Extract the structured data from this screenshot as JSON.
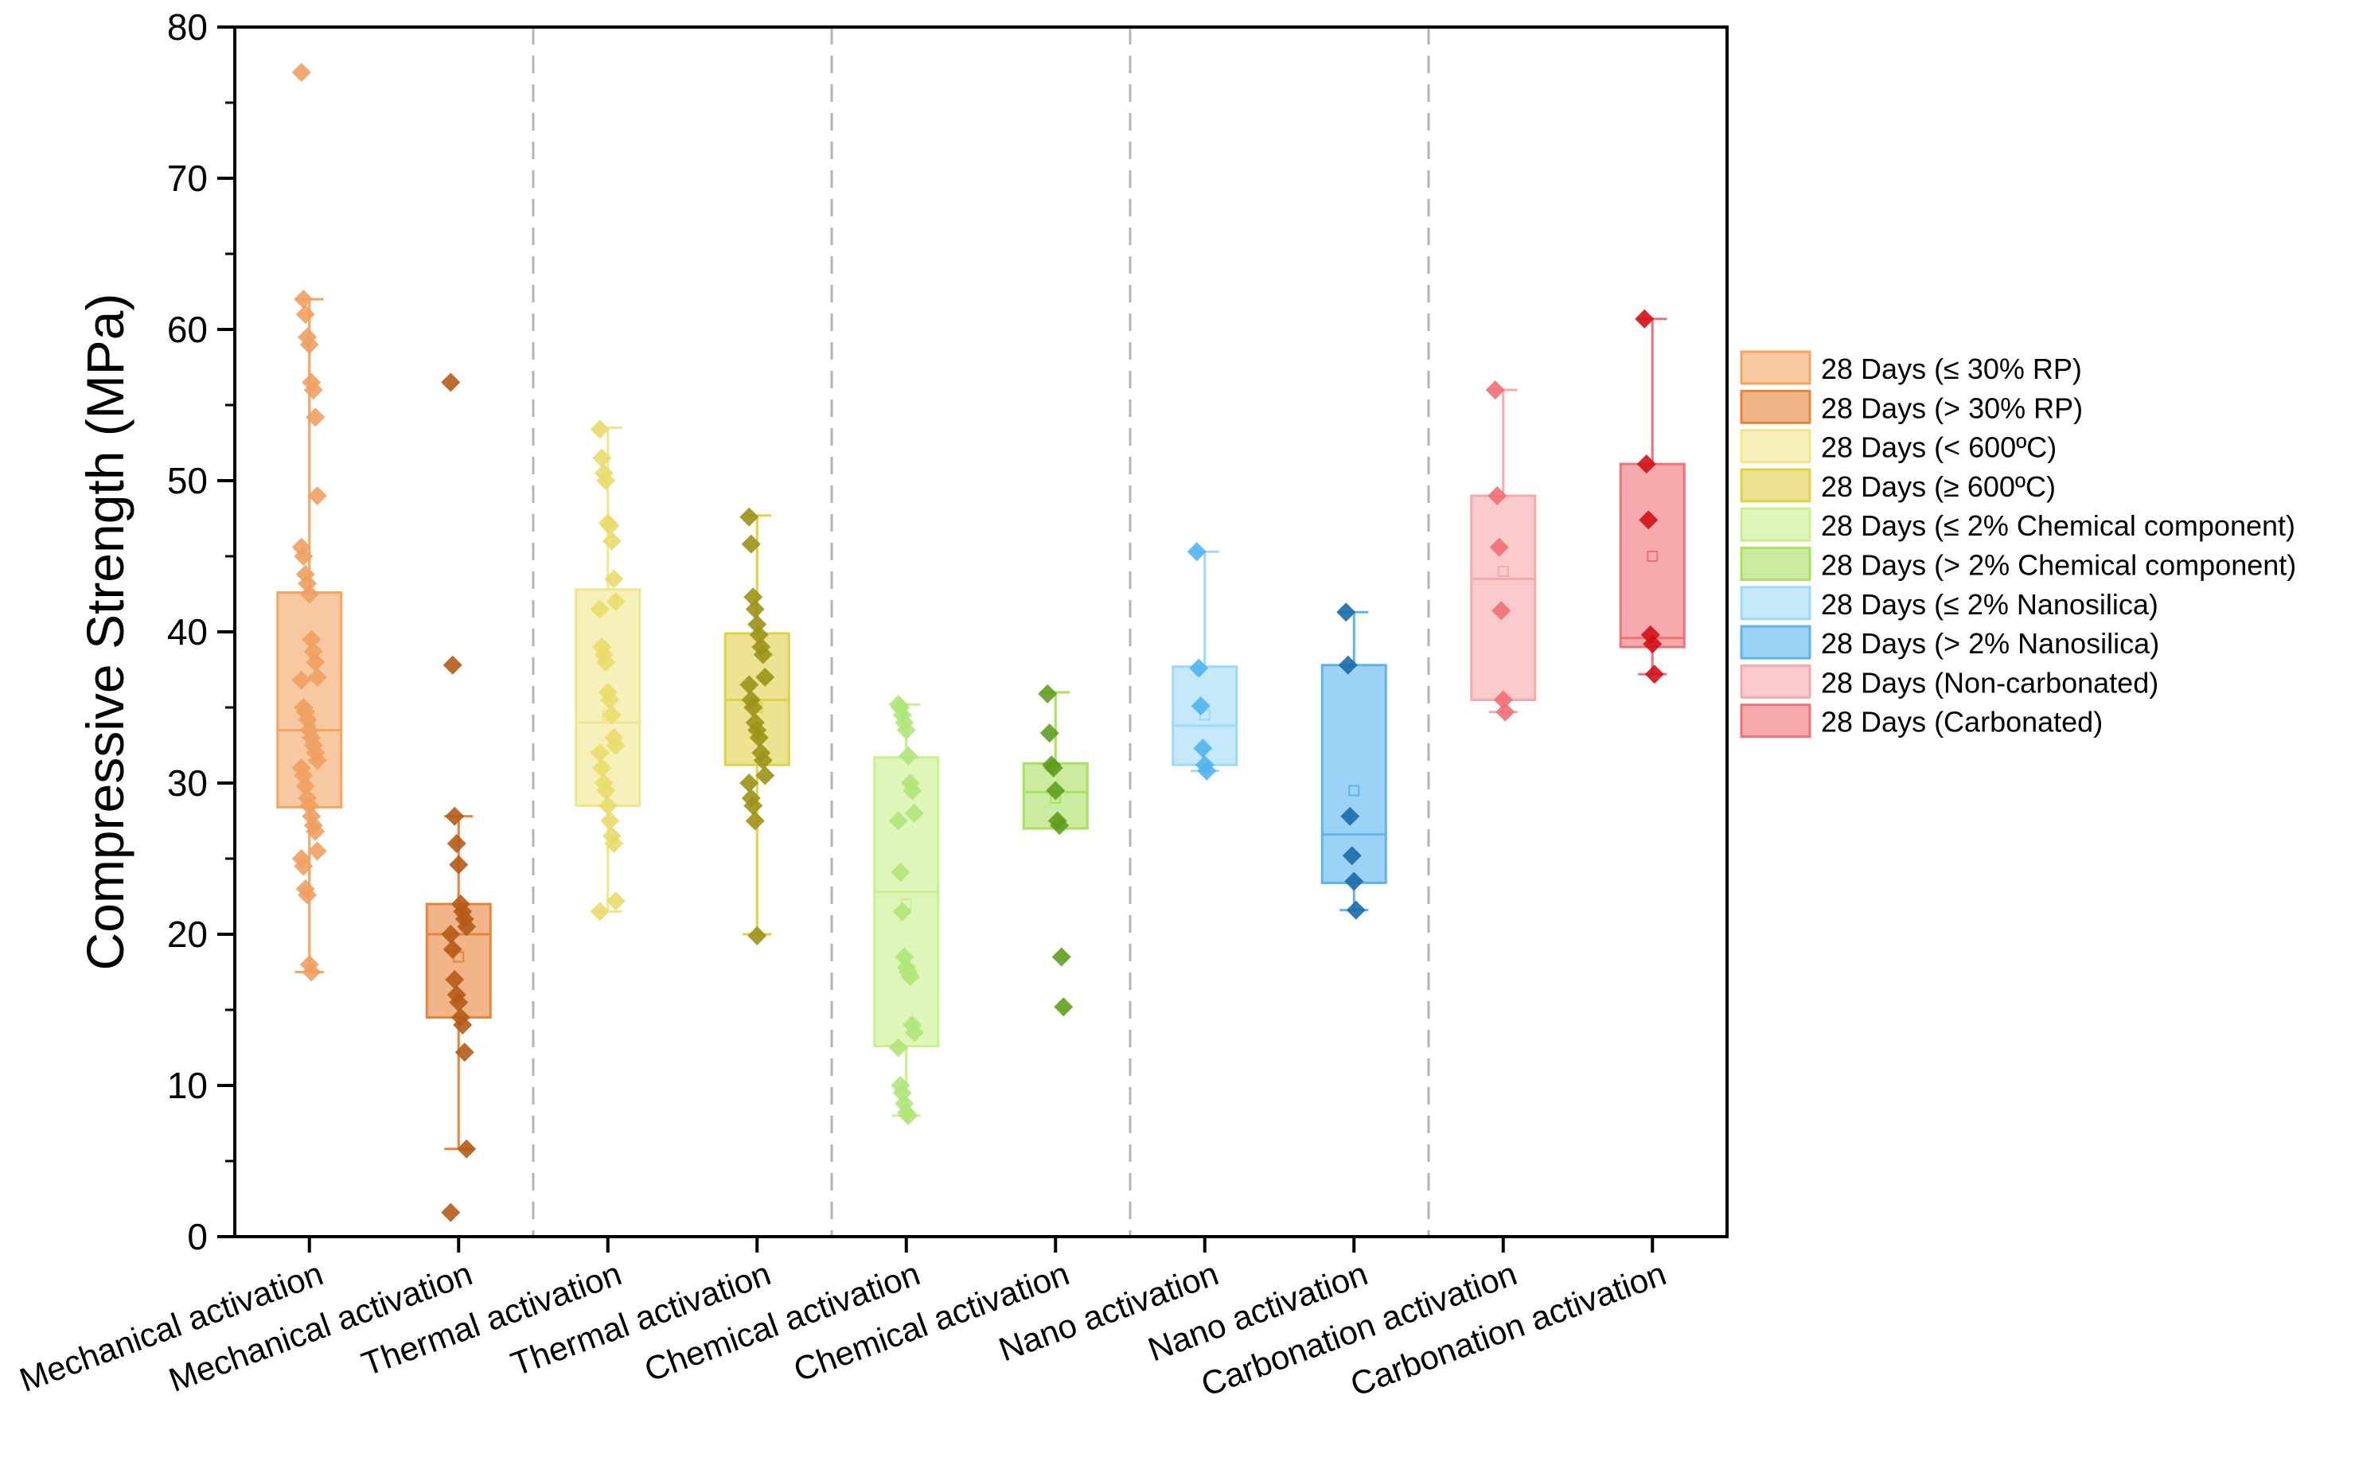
{
  "chart_data": {
    "type": "box",
    "ylabel": "Compressive Strength (MPa)",
    "xlabel": "",
    "ylim": [
      0,
      80
    ],
    "yticks": [
      0,
      10,
      20,
      30,
      40,
      50,
      60,
      70,
      80
    ],
    "group_separators_after": [
      2,
      4,
      6,
      8
    ],
    "legend_position": "right",
    "boxes": [
      {
        "category": "Mechanical activation",
        "legend": "28 Days (≤ 30% RP)",
        "color": "#f4a460",
        "marker": "#f0a060",
        "q1": 28.4,
        "median": 33.5,
        "q3": 42.6,
        "whisker_low": 17.5,
        "whisker_high": 62.0,
        "mean": 34.0,
        "points": [
          77.0,
          62.0,
          61.0,
          59.5,
          59.0,
          56.5,
          56.0,
          54.2,
          49.0,
          45.6,
          45.0,
          43.8,
          43.2,
          42.5,
          39.5,
          38.7,
          38.0,
          37.0,
          36.8,
          35.0,
          34.7,
          34.2,
          33.5,
          33.0,
          32.5,
          32.0,
          31.5,
          31.0,
          30.5,
          29.8,
          29.0,
          28.5,
          27.8,
          27.2,
          26.8,
          25.5,
          25.0,
          24.5,
          23.0,
          22.6,
          18.0,
          17.5
        ]
      },
      {
        "category": "Mechanical activation",
        "legend": "28 Days (> 30% RP)",
        "color": "#e8833a",
        "marker": "#b55a16",
        "q1": 14.5,
        "median": 20.0,
        "q3": 22.0,
        "whisker_low": 5.8,
        "whisker_high": 27.8,
        "mean": 18.5,
        "points": [
          56.5,
          37.8,
          27.8,
          26.0,
          24.6,
          22.0,
          21.5,
          21.0,
          20.5,
          20.0,
          19.0,
          17.0,
          16.0,
          15.5,
          14.5,
          14.0,
          12.2,
          5.8,
          1.6
        ]
      },
      {
        "category": "Thermal activation",
        "legend": "28 Days (< 600ºC)",
        "color": "#f0e68c",
        "marker": "#eadb6a",
        "q1": 28.5,
        "median": 34.0,
        "q3": 42.8,
        "whisker_low": 21.5,
        "whisker_high": 53.5,
        "mean": 34.5,
        "points": [
          53.4,
          51.5,
          50.5,
          50.0,
          47.2,
          47.0,
          46.0,
          43.5,
          42.0,
          41.5,
          39.0,
          38.5,
          38.0,
          36.0,
          35.5,
          34.5,
          33.0,
          32.5,
          32.0,
          31.0,
          30.0,
          29.5,
          28.5,
          27.5,
          26.5,
          26.0,
          22.2,
          21.5
        ]
      },
      {
        "category": "Thermal activation",
        "legend": "28 Days (≥ 600ºC)",
        "color": "#e0d14a",
        "marker": "#9c9218",
        "q1": 31.2,
        "median": 35.5,
        "q3": 39.9,
        "whisker_low": 20.0,
        "whisker_high": 47.7,
        "mean": 35.0,
        "points": [
          47.6,
          45.8,
          42.3,
          41.5,
          40.5,
          39.8,
          39.0,
          38.5,
          37.0,
          36.5,
          35.5,
          35.0,
          34.0,
          33.5,
          33.0,
          32.0,
          31.5,
          30.5,
          30.0,
          29.0,
          28.5,
          27.5,
          19.9
        ]
      },
      {
        "category": "Chemical activation",
        "legend": "28 Days (≤ 2% Chemical component)",
        "color": "#c8f08c",
        "marker": "#b0e67a",
        "q1": 12.6,
        "median": 22.8,
        "q3": 31.7,
        "whisker_low": 8.0,
        "whisker_high": 35.2,
        "mean": 22.0,
        "points": [
          35.2,
          35.0,
          34.5,
          34.0,
          33.5,
          31.8,
          30.0,
          29.5,
          28.0,
          27.5,
          24.1,
          21.5,
          18.5,
          17.8,
          17.5,
          17.2,
          14.0,
          13.5,
          12.5,
          10.0,
          9.5,
          8.8,
          8.2,
          8.0
        ]
      },
      {
        "category": "Chemical activation",
        "legend": "28 Days (> 2% Chemical component)",
        "color": "#a8e060",
        "marker": "#5f9e1e",
        "q1": 27.0,
        "median": 29.4,
        "q3": 31.3,
        "whisker_low": 27.0,
        "whisker_high": 36.0,
        "mean": 29.0,
        "points": [
          35.9,
          33.3,
          31.2,
          31.0,
          29.5,
          27.5,
          27.2,
          18.5,
          15.2
        ]
      },
      {
        "category": "Nano activation",
        "legend": "28 Days (≤ 2% Nanosilica)",
        "color": "#9fd8f8",
        "marker": "#52b4f0",
        "q1": 31.2,
        "median": 33.8,
        "q3": 37.7,
        "whisker_low": 30.8,
        "whisker_high": 45.3,
        "mean": 34.5,
        "points": [
          45.3,
          37.6,
          35.1,
          32.3,
          31.2,
          30.8
        ]
      },
      {
        "category": "Nano activation",
        "legend": "28 Days (> 2% Nanosilica)",
        "color": "#5ab4f0",
        "marker": "#1a6aa8",
        "q1": 23.4,
        "median": 26.6,
        "q3": 37.8,
        "whisker_low": 21.6,
        "whisker_high": 41.3,
        "mean": 29.5,
        "points": [
          41.3,
          37.8,
          27.8,
          25.2,
          23.5,
          21.6
        ]
      },
      {
        "category": "Carbonation activation",
        "legend": "28 Days (Non-carbonated)",
        "color": "#f8a8aa",
        "marker": "#f06f74",
        "q1": 35.5,
        "median": 43.5,
        "q3": 49.0,
        "whisker_low": 34.7,
        "whisker_high": 56.0,
        "mean": 44.0,
        "points": [
          56.0,
          49.0,
          45.6,
          41.4,
          35.5,
          34.7
        ]
      },
      {
        "category": "Carbonation activation",
        "legend": "28 Days (Carbonated)",
        "color": "#f07276",
        "marker": "#d10f17",
        "q1": 39.0,
        "median": 39.6,
        "q3": 51.1,
        "whisker_low": 37.2,
        "whisker_high": 60.7,
        "mean": 45.0,
        "points": [
          60.7,
          51.1,
          47.4,
          39.8,
          39.2,
          37.2
        ]
      }
    ]
  }
}
